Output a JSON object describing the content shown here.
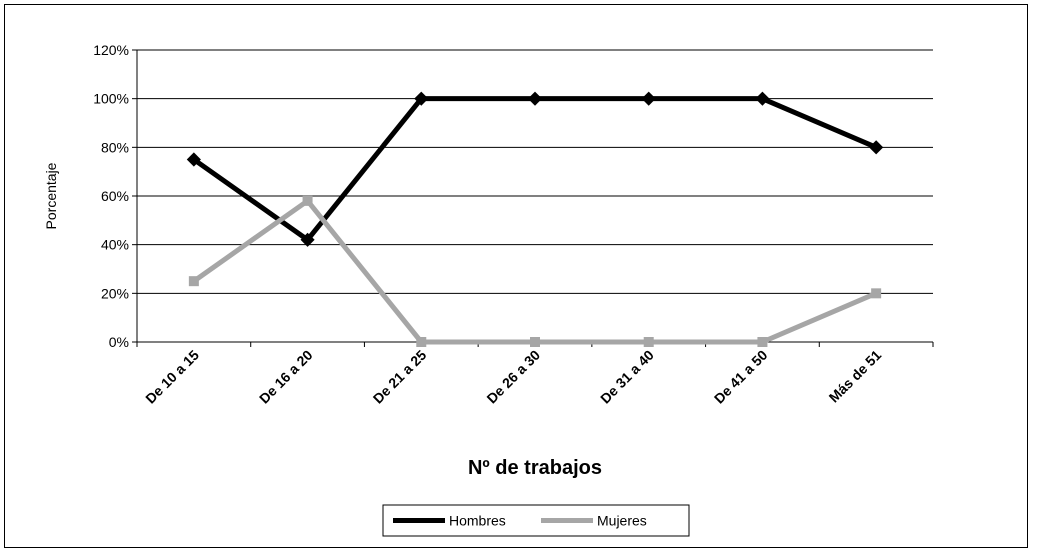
{
  "chart_data": {
    "type": "line",
    "title": "",
    "xlabel": "Nº de trabajos",
    "ylabel": "Porcentaje",
    "categories": [
      "De 10 a 15",
      "De 16 a 20",
      "De 21 a 25",
      "De 26 a 30",
      "De 31 a 40",
      "De 41 a 50",
      "Más de 51"
    ],
    "ylim": [
      0,
      120
    ],
    "yticks": [
      "0%",
      "20%",
      "40%",
      "60%",
      "80%",
      "100%",
      "120%"
    ],
    "grid": true,
    "legend_position": "bottom",
    "series": [
      {
        "name": "Hombres",
        "values": [
          75,
          42,
          100,
          100,
          100,
          100,
          80
        ],
        "color": "#000000"
      },
      {
        "name": "Mujeres",
        "values": [
          25,
          58,
          0,
          0,
          0,
          0,
          20
        ],
        "color": "#a6a6a6"
      }
    ]
  }
}
